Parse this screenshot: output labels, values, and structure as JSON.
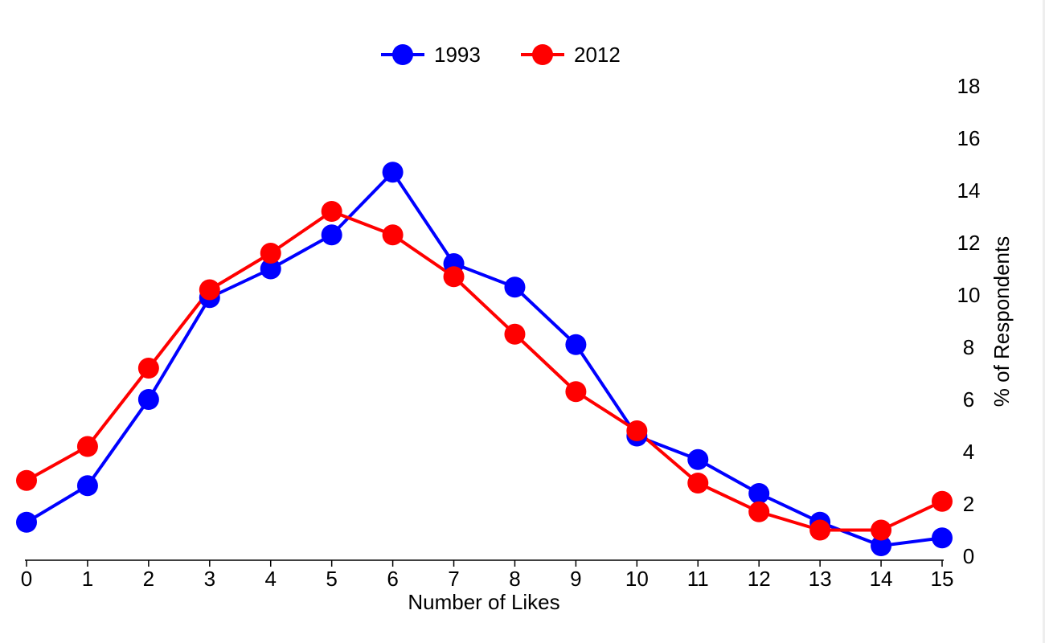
{
  "chart_data": {
    "type": "line",
    "title": "",
    "xlabel": "Number of Likes",
    "ylabel": "% of Respondents",
    "x": [
      0,
      1,
      2,
      3,
      4,
      5,
      6,
      7,
      8,
      9,
      10,
      11,
      12,
      13,
      14,
      15
    ],
    "xlim": [
      0,
      15
    ],
    "ylim": [
      0,
      18
    ],
    "x_ticks": [
      "0",
      "1",
      "2",
      "3",
      "4",
      "5",
      "6",
      "7",
      "8",
      "9",
      "10",
      "11",
      "12",
      "13",
      "14",
      "15"
    ],
    "y_ticks": [
      "0",
      "2",
      "4",
      "6",
      "8",
      "10",
      "12",
      "14",
      "16",
      "18"
    ],
    "y_axis_side": "right",
    "grid": false,
    "legend_position": "top-center",
    "series": [
      {
        "name": "1993",
        "color": "#0000ff",
        "values": [
          1.3,
          2.7,
          6.0,
          9.9,
          11.0,
          12.3,
          14.7,
          11.2,
          10.3,
          8.1,
          4.6,
          3.7,
          2.4,
          1.3,
          0.4,
          0.7
        ]
      },
      {
        "name": "2012",
        "color": "#ff0000",
        "values": [
          2.9,
          4.2,
          7.2,
          10.2,
          11.6,
          13.2,
          12.3,
          10.7,
          8.5,
          6.3,
          4.8,
          2.8,
          1.7,
          1.0,
          1.0,
          2.1
        ]
      }
    ]
  }
}
